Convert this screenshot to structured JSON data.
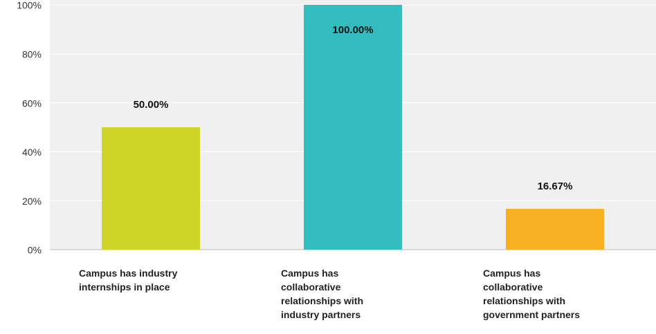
{
  "chart_data": {
    "type": "bar",
    "categories": [
      "Campus has industry\ninternships in place",
      "Campus has\ncollaborative\nrelationships with\nindustry partners",
      "Campus has\ncollaborative\nrelationships with\ngovernment partners"
    ],
    "values": [
      50,
      100,
      16.67
    ],
    "value_labels": [
      "50.00%",
      "100.00%",
      "16.67%"
    ],
    "colors": [
      "#d0d52a",
      "#33bdbf",
      "#f8b023"
    ],
    "ylim": [
      0,
      100
    ],
    "yticks": [
      {
        "value": 0,
        "label": "0%"
      },
      {
        "value": 20,
        "label": "20%"
      },
      {
        "value": 40,
        "label": "40%"
      },
      {
        "value": 60,
        "label": "60%"
      },
      {
        "value": 80,
        "label": "80%"
      },
      {
        "value": 100,
        "label": "100%"
      }
    ],
    "grid": true
  }
}
